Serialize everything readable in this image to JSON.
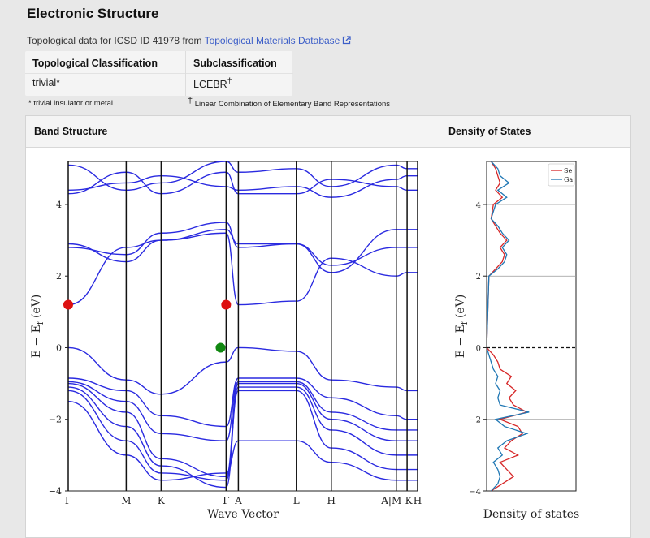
{
  "header": {
    "title": "Electronic Structure",
    "subtitle_prefix": "Topological data for ICSD ID 41978 from",
    "subtitle_link": "Topological Materials Database"
  },
  "classification": {
    "topo_header": "Topological Classification",
    "topo_value": "trivial*",
    "sub_header": "Subclassification",
    "sub_value": "LCEBR",
    "sub_value_mark": "†",
    "footnote_topo": "* trivial insulator or metal",
    "footnote_sub_mark": "†",
    "footnote_sub": "Linear Combination of Elementary Band Representations"
  },
  "panel": {
    "band_header": "Band Structure",
    "dos_header": "Density of States"
  },
  "chart_data": [
    {
      "type": "line",
      "xlabel": "Wave Vector",
      "ylabel": "E − E_f (eV)",
      "ylim": [
        -4,
        5.2
      ],
      "yticks": [
        -4,
        -2,
        0,
        2,
        4
      ],
      "kpoint_labels": [
        "Γ",
        "M",
        "K",
        "Γ",
        "A",
        "L",
        "H",
        "A|M",
        "K",
        "H"
      ],
      "kpoint_positions": [
        0,
        0.166,
        0.266,
        0.452,
        0.487,
        0.653,
        0.753,
        0.939,
        0.97,
        1.0
      ],
      "line_color": "#2a2ae0",
      "markers": [
        {
          "x": 0,
          "y": 1.2,
          "color": "#dd1111"
        },
        {
          "x": 0.452,
          "y": 1.2,
          "color": "#dd1111"
        },
        {
          "x": 0.436,
          "y": 0.0,
          "color": "#118811"
        }
      ],
      "bands": [
        [
          -0.85,
          -1.2,
          -1.9,
          -2.2,
          -0.85,
          -0.85,
          -1.4,
          -1.9,
          -2.0,
          -2.0
        ],
        [
          -0.95,
          -1.5,
          -2.4,
          -2.6,
          -0.95,
          -0.95,
          -1.8,
          -2.3,
          -2.3,
          -2.3
        ],
        [
          -1.0,
          -1.8,
          -3.1,
          -3.6,
          -1.0,
          -1.0,
          -2.0,
          -2.6,
          -2.6,
          -2.6
        ],
        [
          -1.1,
          -2.2,
          -3.3,
          -3.9,
          -1.1,
          -1.1,
          -2.3,
          -3.0,
          -3.0,
          -3.0
        ],
        [
          -1.2,
          -2.6,
          -3.5,
          -3.7,
          -1.2,
          -1.2,
          -2.8,
          -3.4,
          -3.4,
          -3.4
        ],
        [
          -1.5,
          -3.0,
          -3.7,
          -3.5,
          -2.6,
          -2.6,
          -3.2,
          -3.7,
          -3.7,
          -3.7
        ],
        [
          0.0,
          -0.9,
          -1.3,
          -0.4,
          0.0,
          -0.1,
          -0.9,
          -1.1,
          -1.2,
          -1.2
        ],
        [
          1.2,
          2.8,
          3.0,
          3.2,
          1.2,
          1.3,
          2.5,
          2.0,
          2.1,
          2.1
        ],
        [
          2.8,
          2.6,
          3.2,
          3.5,
          2.8,
          2.9,
          2.1,
          3.3,
          3.3,
          3.3
        ],
        [
          2.9,
          2.4,
          3.0,
          3.3,
          2.9,
          2.9,
          2.3,
          2.8,
          2.8,
          2.8
        ],
        [
          4.3,
          4.9,
          4.3,
          4.9,
          4.3,
          4.3,
          4.7,
          4.5,
          4.4,
          4.4
        ],
        [
          4.4,
          4.6,
          4.8,
          4.5,
          4.4,
          4.5,
          4.2,
          4.7,
          4.8,
          4.8
        ],
        [
          5.1,
          4.4,
          4.6,
          5.2,
          4.9,
          5.0,
          4.5,
          5.1,
          5.0,
          5.0
        ]
      ]
    },
    {
      "type": "line",
      "xlabel": "Density of states",
      "ylabel": "E − E_f (eV)",
      "ylim": [
        -4,
        5.2
      ],
      "yticks": [
        -4,
        -2,
        0,
        2,
        4
      ],
      "legend_position": "top-right",
      "series": [
        {
          "name": "Se",
          "color": "#d62728",
          "x": [
            -4,
            -3.8,
            -3.6,
            -3.4,
            -3.2,
            -3.0,
            -2.8,
            -2.6,
            -2.4,
            -2.2,
            -2.0,
            -1.8,
            -1.6,
            -1.4,
            -1.2,
            -1.0,
            -0.8,
            -0.6,
            -0.4,
            -0.2,
            0,
            2.0,
            2.2,
            2.4,
            2.6,
            2.8,
            3.0,
            3.2,
            3.4,
            3.6,
            4.0,
            4.2,
            4.4,
            4.6,
            4.8,
            5.0,
            5.2
          ],
          "values": [
            0.1,
            0.35,
            0.6,
            0.45,
            0.3,
            0.7,
            0.4,
            0.55,
            0.8,
            0.7,
            0.3,
            0.9,
            0.6,
            0.5,
            0.65,
            0.45,
            0.55,
            0.3,
            0.25,
            0.15,
            0,
            0.05,
            0.2,
            0.35,
            0.4,
            0.3,
            0.45,
            0.3,
            0.2,
            0.1,
            0.15,
            0.35,
            0.2,
            0.3,
            0.25,
            0.2,
            0.1
          ]
        },
        {
          "name": "Ga",
          "color": "#1f77b4",
          "x": [
            -4,
            -3.8,
            -3.6,
            -3.4,
            -3.2,
            -3.0,
            -2.8,
            -2.6,
            -2.4,
            -2.2,
            -2.0,
            -1.8,
            -1.6,
            -1.4,
            -1.2,
            -1.0,
            -0.8,
            -0.6,
            -0.4,
            -0.2,
            0,
            2.0,
            2.2,
            2.4,
            2.6,
            2.8,
            3.0,
            3.2,
            3.4,
            3.6,
            4.0,
            4.2,
            4.4,
            4.6,
            4.8,
            5.0,
            5.2
          ],
          "values": [
            0.1,
            0.25,
            0.3,
            0.25,
            0.15,
            0.35,
            0.25,
            0.45,
            0.9,
            0.4,
            0.2,
            0.95,
            0.3,
            0.25,
            0.3,
            0.2,
            0.25,
            0.15,
            0.1,
            0.05,
            0,
            0.05,
            0.25,
            0.4,
            0.45,
            0.35,
            0.5,
            0.35,
            0.25,
            0.1,
            0.2,
            0.45,
            0.25,
            0.5,
            0.3,
            0.25,
            0.1
          ]
        }
      ]
    }
  ]
}
